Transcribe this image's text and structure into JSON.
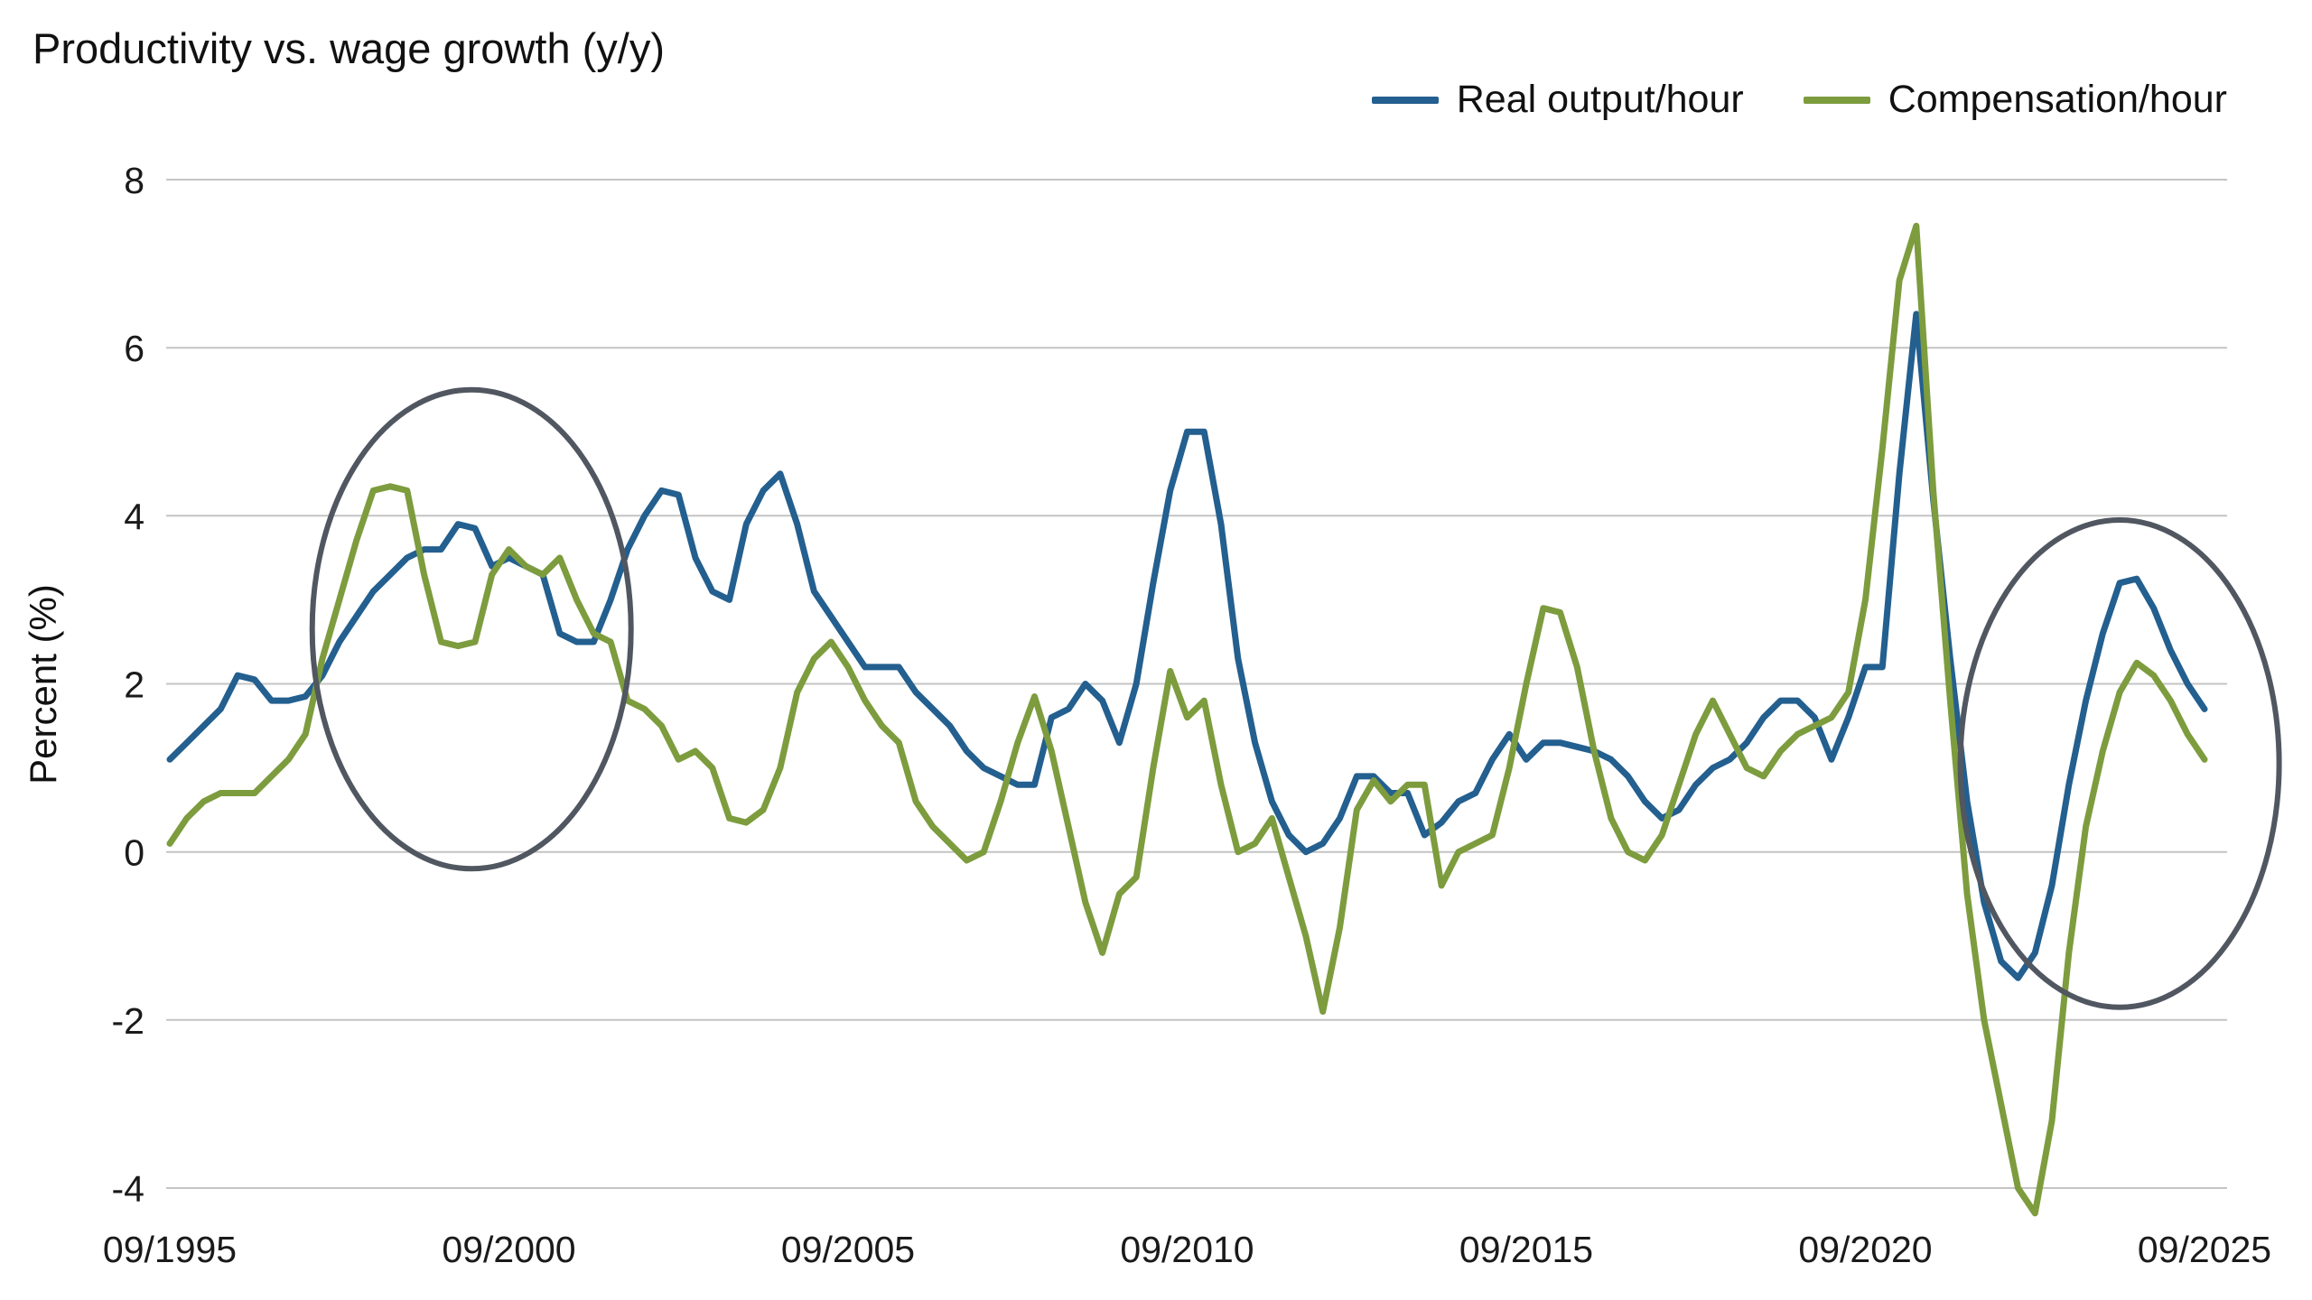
{
  "header": {
    "title": "Productivity vs. wage growth (y/y)"
  },
  "legend": [
    {
      "label": "Real output/hour",
      "color": "#235f8f"
    },
    {
      "label": "Compensation/hour",
      "color": "#7d9c3e"
    }
  ],
  "chart_data": {
    "type": "line",
    "title": "Productivity vs. wage growth (y/y)",
    "xlabel": "",
    "ylabel": "Percent (%)",
    "ylim": [
      -4,
      8
    ],
    "yticks": [
      8,
      6,
      4,
      2,
      0,
      -2,
      -4
    ],
    "xticks": [
      "09/1995",
      "09/2000",
      "09/2005",
      "09/2010",
      "09/2015",
      "09/2020",
      "09/2025"
    ],
    "xtick_interval_years": 5,
    "x_start_year": 1995.75,
    "x_end_year": 2025.75,
    "frequency": "quarterly",
    "grid": "horizontal",
    "grid_color": "#c4c4c4",
    "text_color": "#1a1a1a",
    "legend_position": "top-right",
    "series": [
      {
        "name": "Real output/hour",
        "color": "#235f8f",
        "values": [
          1.1,
          1.3,
          1.5,
          1.7,
          2.1,
          2.05,
          1.8,
          1.8,
          1.85,
          2.1,
          2.5,
          2.8,
          3.1,
          3.3,
          3.5,
          3.6,
          3.6,
          3.9,
          3.85,
          3.4,
          3.5,
          3.4,
          3.3,
          2.6,
          2.5,
          2.5,
          3.0,
          3.6,
          4.0,
          4.3,
          4.25,
          3.5,
          3.1,
          3.0,
          3.9,
          4.3,
          4.5,
          3.9,
          3.1,
          2.8,
          2.5,
          2.2,
          2.2,
          2.2,
          1.9,
          1.7,
          1.5,
          1.2,
          1.0,
          0.9,
          0.8,
          0.8,
          1.6,
          1.7,
          2.0,
          1.8,
          1.3,
          2.0,
          3.2,
          4.3,
          5.0,
          5.0,
          3.9,
          2.3,
          1.3,
          0.6,
          0.2,
          0.0,
          0.1,
          0.4,
          0.9,
          0.9,
          0.7,
          0.7,
          0.2,
          0.35,
          0.6,
          0.7,
          1.1,
          1.4,
          1.1,
          1.3,
          1.3,
          1.25,
          1.2,
          1.1,
          0.9,
          0.6,
          0.4,
          0.5,
          0.8,
          1.0,
          1.1,
          1.3,
          1.6,
          1.8,
          1.8,
          1.6,
          1.1,
          1.6,
          2.2,
          2.2,
          4.5,
          6.4,
          4.2,
          2.3,
          0.6,
          -0.6,
          -1.3,
          -1.5,
          -1.2,
          -0.4,
          0.8,
          1.8,
          2.6,
          3.2,
          3.25,
          2.9,
          2.4,
          2.0,
          1.7
        ]
      },
      {
        "name": "Compensation/hour",
        "color": "#7d9c3e",
        "values": [
          0.1,
          0.4,
          0.6,
          0.7,
          0.7,
          0.7,
          0.9,
          1.1,
          1.4,
          2.3,
          3.0,
          3.7,
          4.3,
          4.35,
          4.3,
          3.3,
          2.5,
          2.45,
          2.5,
          3.3,
          3.6,
          3.4,
          3.3,
          3.5,
          3.0,
          2.6,
          2.5,
          1.8,
          1.7,
          1.5,
          1.1,
          1.2,
          1.0,
          0.4,
          0.35,
          0.5,
          1.0,
          1.9,
          2.3,
          2.5,
          2.2,
          1.8,
          1.5,
          1.3,
          0.6,
          0.3,
          0.1,
          -0.1,
          0.0,
          0.6,
          1.3,
          1.85,
          1.2,
          0.3,
          -0.6,
          -1.2,
          -0.5,
          -0.3,
          1.0,
          2.15,
          1.6,
          1.8,
          0.8,
          0.0,
          0.1,
          0.4,
          -0.3,
          -1.0,
          -1.9,
          -0.9,
          0.5,
          0.85,
          0.6,
          0.8,
          0.8,
          -0.4,
          0.0,
          0.1,
          0.2,
          1.0,
          2.0,
          2.9,
          2.85,
          2.2,
          1.2,
          0.4,
          0.0,
          -0.1,
          0.2,
          0.8,
          1.4,
          1.8,
          1.4,
          1.0,
          0.9,
          1.2,
          1.4,
          1.5,
          1.6,
          1.9,
          3.0,
          4.8,
          6.8,
          7.45,
          4.3,
          1.8,
          -0.5,
          -2.0,
          -3.0,
          -4.0,
          -4.3,
          -3.2,
          -1.2,
          0.3,
          1.2,
          1.9,
          2.25,
          2.1,
          1.8,
          1.4,
          1.1
        ]
      }
    ],
    "annotations": [
      {
        "type": "ellipse",
        "center_x_year": 2000.2,
        "center_y": 2.65,
        "rx_years": 2.35,
        "ry": 2.85,
        "color": "#515760"
      },
      {
        "type": "ellipse",
        "center_x_year": 2024.5,
        "center_y": 1.05,
        "rx_years": 2.35,
        "ry": 2.9,
        "color": "#515760"
      }
    ]
  }
}
